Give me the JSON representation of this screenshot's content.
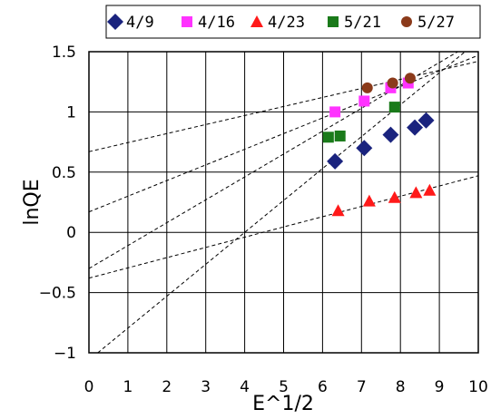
{
  "chart_data": {
    "type": "scatter",
    "title": "",
    "xlabel": "E^1/2",
    "ylabel": "lnQE",
    "xlim": [
      0,
      10
    ],
    "ylim": [
      -1,
      1.5
    ],
    "x_ticks": [
      0,
      1,
      2,
      3,
      4,
      5,
      6,
      7,
      8,
      9,
      10
    ],
    "y_ticks": [
      1.5,
      1,
      0.5,
      0,
      -0.5,
      -1
    ],
    "y_tick_labels": [
      "1.5",
      "1",
      "0.5",
      "0",
      "−0.5",
      "−1"
    ],
    "grid": true,
    "legend_position": "top",
    "series": [
      {
        "name": "4/9",
        "marker": "diamond",
        "color": "#1a237e",
        "x": [
          6.32,
          7.07,
          7.75,
          8.37,
          8.66
        ],
        "y": [
          0.59,
          0.7,
          0.81,
          0.87,
          0.93
        ],
        "trend": {
          "slope": 0.265,
          "intercept": -1.06
        }
      },
      {
        "name": "4/16",
        "marker": "square",
        "color": "#ff33ff",
        "x": [
          6.32,
          7.07,
          7.75,
          8.2
        ],
        "y": [
          1.0,
          1.09,
          1.2,
          1.24
        ],
        "trend": {
          "slope": 0.13,
          "intercept": 0.17
        }
      },
      {
        "name": "4/23",
        "marker": "triangle",
        "color": "#ff1a1a",
        "x": [
          6.4,
          7.2,
          7.85,
          8.4,
          8.75
        ],
        "y": [
          0.18,
          0.26,
          0.29,
          0.33,
          0.35
        ],
        "trend": {
          "slope": 0.085,
          "intercept": -0.38
        }
      },
      {
        "name": "5/21",
        "marker": "square",
        "color": "#1a7a1a",
        "x": [
          6.15,
          6.45,
          7.85
        ],
        "y": [
          0.79,
          0.8,
          1.04
        ],
        "trend": {
          "slope": 0.19,
          "intercept": -0.3
        }
      },
      {
        "name": "5/27",
        "marker": "circle",
        "color": "#8b3a1a",
        "x": [
          7.15,
          7.8,
          8.25
        ],
        "y": [
          1.2,
          1.24,
          1.28
        ],
        "trend": {
          "slope": 0.075,
          "intercept": 0.67
        }
      }
    ]
  }
}
